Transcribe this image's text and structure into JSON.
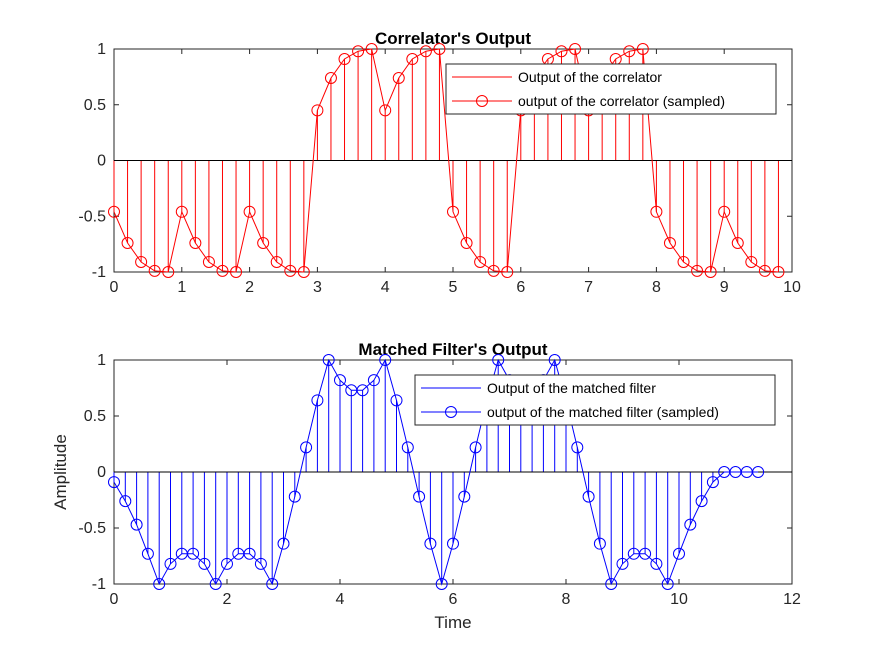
{
  "chart_data": [
    {
      "type": "line",
      "title": "Correlator's Output",
      "xlabel": "",
      "ylabel": "",
      "xlim": [
        0,
        10
      ],
      "ylim": [
        -1,
        1
      ],
      "xticks": [
        0,
        1,
        2,
        3,
        4,
        5,
        6,
        7,
        8,
        9,
        10
      ],
      "xtick_labels": [
        "0",
        "1",
        "2",
        "3",
        "4",
        "5",
        "6",
        "7",
        "8",
        "9",
        "10"
      ],
      "yticks": [
        -1,
        -0.5,
        0,
        0.5,
        1
      ],
      "ytick_labels": [
        "-1",
        "-0.5",
        "0",
        "0.5",
        "1"
      ],
      "color": "#ff0000",
      "legend_position": "top-right",
      "x_step": 0.2,
      "series": [
        {
          "name": "Output of the correlator",
          "style": "line",
          "values": [
            -0.46,
            -0.74,
            -0.91,
            -0.99,
            -1.0,
            -0.46,
            -0.74,
            -0.91,
            -0.99,
            -1.0,
            -0.46,
            -0.74,
            -0.91,
            -0.99,
            -1.0,
            0.45,
            0.74,
            0.91,
            0.98,
            1.0,
            0.45,
            0.74,
            0.91,
            0.98,
            1.0,
            -0.46,
            -0.74,
            -0.91,
            -0.99,
            -1.0,
            0.45,
            0.74,
            0.91,
            0.98,
            1.0,
            0.45,
            0.74,
            0.91,
            0.98,
            1.0,
            -0.46,
            -0.74,
            -0.91,
            -0.99,
            -1.0,
            -0.46,
            -0.74,
            -0.91,
            -0.99,
            -1.0
          ]
        },
        {
          "name": "output of the correlator (sampled)",
          "style": "stem",
          "values": [
            -0.46,
            -0.74,
            -0.91,
            -0.99,
            -1.0,
            -0.46,
            -0.74,
            -0.91,
            -0.99,
            -1.0,
            -0.46,
            -0.74,
            -0.91,
            -0.99,
            -1.0,
            0.45,
            0.74,
            0.91,
            0.98,
            1.0,
            0.45,
            0.74,
            0.91,
            0.98,
            1.0,
            -0.46,
            -0.74,
            -0.91,
            -0.99,
            -1.0,
            0.45,
            0.74,
            0.91,
            0.98,
            1.0,
            0.45,
            0.74,
            0.91,
            0.98,
            1.0,
            -0.46,
            -0.74,
            -0.91,
            -0.99,
            -1.0,
            -0.46,
            -0.74,
            -0.91,
            -0.99,
            -1.0
          ]
        }
      ]
    },
    {
      "type": "line",
      "title": "Matched Filter's Output",
      "xlabel": "Time",
      "ylabel": "Amplitude",
      "xlim": [
        0,
        12
      ],
      "ylim": [
        -1,
        1
      ],
      "xticks": [
        0,
        2,
        4,
        6,
        8,
        10,
        12
      ],
      "xtick_labels": [
        "0",
        "2",
        "4",
        "6",
        "8",
        "10",
        "12"
      ],
      "yticks": [
        -1,
        -0.5,
        0,
        0.5,
        1
      ],
      "ytick_labels": [
        "-1",
        "-0.5",
        "0",
        "0.5",
        "1"
      ],
      "color": "#0000ff",
      "legend_position": "top-right",
      "x_step": 0.2,
      "series": [
        {
          "name": "Output of the matched filter",
          "style": "line",
          "values": [
            -0.09,
            -0.26,
            -0.47,
            -0.73,
            -1.0,
            -0.82,
            -0.73,
            -0.73,
            -0.82,
            -1.0,
            -0.82,
            -0.73,
            -0.73,
            -0.82,
            -1.0,
            -0.64,
            -0.22,
            0.22,
            0.64,
            1.0,
            0.82,
            0.73,
            0.73,
            0.82,
            1.0,
            0.64,
            0.22,
            -0.22,
            -0.64,
            -1.0,
            -0.64,
            -0.22,
            0.22,
            0.64,
            1.0,
            0.82,
            0.73,
            0.73,
            0.82,
            1.0,
            0.64,
            0.22,
            -0.22,
            -0.64,
            -1.0,
            -0.82,
            -0.73,
            -0.73,
            -0.82,
            -1.0,
            -0.73,
            -0.47,
            -0.26,
            -0.09,
            0.0,
            0.0,
            0.0,
            0.0
          ]
        },
        {
          "name": "output of the matched filter (sampled)",
          "style": "stem",
          "values": [
            -0.09,
            -0.26,
            -0.47,
            -0.73,
            -1.0,
            -0.82,
            -0.73,
            -0.73,
            -0.82,
            -1.0,
            -0.82,
            -0.73,
            -0.73,
            -0.82,
            -1.0,
            -0.64,
            -0.22,
            0.22,
            0.64,
            1.0,
            0.82,
            0.73,
            0.73,
            0.82,
            1.0,
            0.64,
            0.22,
            -0.22,
            -0.64,
            -1.0,
            -0.64,
            -0.22,
            0.22,
            0.64,
            1.0,
            0.82,
            0.73,
            0.73,
            0.82,
            1.0,
            0.64,
            0.22,
            -0.22,
            -0.64,
            -1.0,
            -0.82,
            -0.73,
            -0.73,
            -0.82,
            -1.0,
            -0.73,
            -0.47,
            -0.26,
            -0.09,
            0.0,
            0.0,
            0.0,
            0.0
          ]
        }
      ]
    }
  ]
}
